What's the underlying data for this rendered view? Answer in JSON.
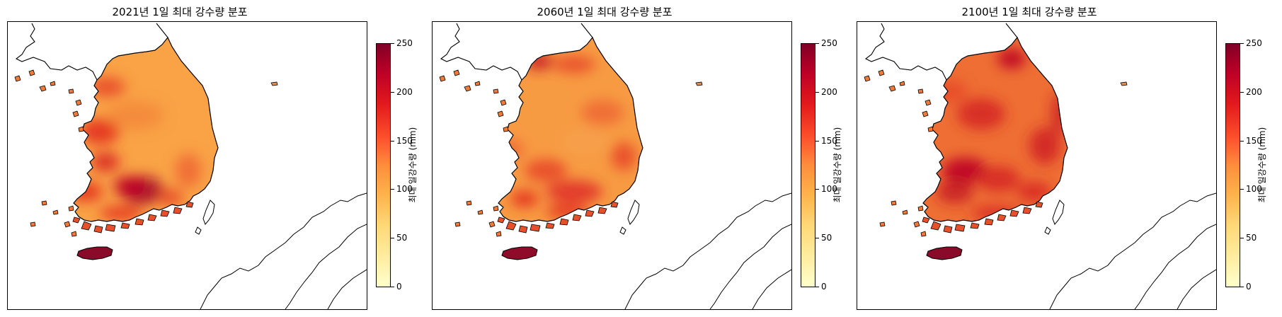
{
  "maps": [
    {
      "title": "2021년 1일 최대 강수량 분포",
      "variant": 0
    },
    {
      "title": "2060년 1일 최대 강수량 분포",
      "variant": 1
    },
    {
      "title": "2100년 1일 최대 강수량 분포",
      "variant": 2
    }
  ],
  "colorbar": {
    "label": "최대 일강수량 (mm)",
    "ticks": [
      "0",
      "50",
      "100",
      "150",
      "200",
      "250"
    ],
    "range": [
      0,
      250
    ],
    "colormap": "YlOrRd",
    "colors": [
      "#ffffcc",
      "#ffeda0",
      "#fed976",
      "#feb24c",
      "#fd8d3c",
      "#fc4e2a",
      "#e31a1c",
      "#bd0026",
      "#800026"
    ]
  }
}
